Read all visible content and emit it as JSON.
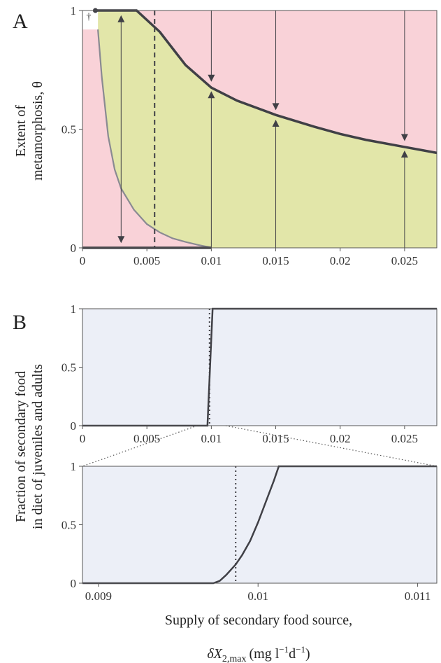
{
  "colors": {
    "infeasible": "#f9d2d8",
    "feasible": "#e2e6a9",
    "panelB_bg": "#eceff7",
    "curve_dark": "#404046",
    "curve_gray": "#8a8a92",
    "dashed": "#404046",
    "arrow": "#404046"
  },
  "chart_data": [
    {
      "panel": "A",
      "type": "line",
      "panel_letter": "A",
      "ylabel_line1": "Extent of",
      "ylabel_line2": "metamorphosis, θ",
      "dagger": "†",
      "xlim": [
        0,
        0.0275
      ],
      "ylim": [
        0,
        1
      ],
      "xticks": [
        0,
        0.005,
        0.01,
        0.015,
        0.02,
        0.025
      ],
      "xtick_labels": [
        "0",
        "0.005",
        "0.01",
        "0.015",
        "0.02",
        "0.025"
      ],
      "yticks": [
        0,
        0.5,
        1
      ],
      "ytick_labels": [
        "0",
        "0.5",
        "1"
      ],
      "dashed_vline_x": 0.0056,
      "upper_curve": {
        "x": [
          0.001,
          0.0042,
          0.006,
          0.008,
          0.01,
          0.012,
          0.015,
          0.018,
          0.02,
          0.022,
          0.025,
          0.0275
        ],
        "y": [
          1.0,
          1.0,
          0.91,
          0.77,
          0.675,
          0.62,
          0.56,
          0.51,
          0.48,
          0.455,
          0.425,
          0.4
        ]
      },
      "lower_curve": {
        "x": [
          0.0012,
          0.0015,
          0.002,
          0.0025,
          0.003,
          0.004,
          0.005,
          0.006,
          0.007,
          0.008,
          0.009,
          0.0098,
          0.01
        ],
        "y": [
          0.92,
          0.72,
          0.47,
          0.33,
          0.25,
          0.16,
          0.1,
          0.065,
          0.04,
          0.025,
          0.012,
          0.003,
          0.0
        ]
      },
      "bottom_line": {
        "x": [
          0,
          0.01
        ],
        "y": [
          0,
          0
        ]
      },
      "top_line": {
        "x": [
          0.001,
          0.0042
        ],
        "y": [
          1,
          1
        ]
      },
      "open_region": {
        "x": [
          0,
          0.0012
        ],
        "y": [
          0.92,
          1
        ]
      },
      "end_point": {
        "x": 0.001,
        "y": 1
      },
      "arrows": [
        {
          "x": 0.003,
          "from": 0.5,
          "to": 0.02
        },
        {
          "x": 0.003,
          "from": 0.5,
          "to": 0.98
        },
        {
          "x": 0.01,
          "from": 1.0,
          "to": 0.7
        },
        {
          "x": 0.01,
          "from": 0.0,
          "to": 0.66
        },
        {
          "x": 0.015,
          "from": 1.0,
          "to": 0.58
        },
        {
          "x": 0.015,
          "from": 0.0,
          "to": 0.54
        },
        {
          "x": 0.025,
          "from": 1.0,
          "to": 0.45
        },
        {
          "x": 0.025,
          "from": 0.0,
          "to": 0.41
        }
      ]
    },
    {
      "panel": "B-top",
      "type": "line",
      "panel_letter": "B",
      "xlim": [
        0,
        0.0275
      ],
      "ylim": [
        0,
        1
      ],
      "xticks": [
        0,
        0.005,
        0.01,
        0.015,
        0.02,
        0.025
      ],
      "xtick_labels": [
        "0",
        "0.005",
        "0.01",
        "0.015",
        "0.02",
        "0.025"
      ],
      "yticks": [
        0,
        0.5,
        1
      ],
      "ytick_labels": [
        "0",
        "0.5",
        "1"
      ],
      "dotted_vline_x": 0.00986,
      "series": [
        {
          "x": [
            0,
            0.0097,
            0.0101,
            0.0275
          ],
          "y": [
            0,
            0,
            1,
            1
          ]
        }
      ]
    },
    {
      "panel": "B-zoom",
      "type": "line",
      "xlim": [
        0.0089,
        0.01112
      ],
      "ylim": [
        0,
        1
      ],
      "xticks": [
        0.009,
        0.01,
        0.011
      ],
      "xtick_labels": [
        "0.009",
        "0.01",
        "0.011"
      ],
      "yticks": [
        0,
        0.5,
        1
      ],
      "ytick_labels": [
        "0",
        "0.5",
        "1"
      ],
      "dotted_vline_x": 0.00986,
      "series": [
        {
          "x": [
            0.0089,
            0.00972,
            0.00976,
            0.0098,
            0.00986,
            0.0099,
            0.00995,
            0.01,
            0.01005,
            0.0101,
            0.01013,
            0.01112
          ],
          "y": [
            0,
            0,
            0.02,
            0.07,
            0.16,
            0.24,
            0.36,
            0.52,
            0.7,
            0.88,
            1,
            1
          ]
        }
      ]
    }
  ],
  "shared_ylabel_line1": "Fraction of secondary food",
  "shared_ylabel_line2": "in diet of juveniles and adults",
  "xlabel_line1": "Supply of secondary food source,",
  "xlabel_line2_main": "δX",
  "xlabel_line2_sub": "2,max",
  "xlabel_line2_units": "(mg l",
  "xlabel_line2_exp1": "−1",
  "xlabel_line2_mid": "d",
  "xlabel_line2_exp2": "−1",
  "xlabel_line2_end": ")"
}
